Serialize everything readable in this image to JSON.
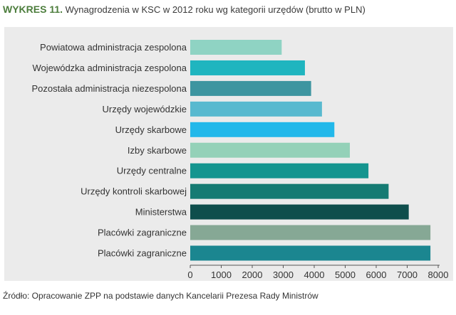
{
  "header": {
    "prefix": "WYKRES 11.",
    "title": "Wynagrodzenia w KSC w 2012 roku wg kategorii urzędów (brutto w PLN)"
  },
  "footer": {
    "source": "Źródło: Opracowanie ZPP na podstawie danych Kancelarii Prezesa Rady Ministrów"
  },
  "chart_data": {
    "type": "bar",
    "orientation": "horizontal",
    "categories": [
      "Powiatowa administracja zespolona",
      "Wojewódzka administracja zespolona",
      "Pozostała administracja niezespolona",
      "Urzędy wojewódzkie",
      "Urzędy skarbowe",
      "Izby skarbowe",
      "Urzędy centralne",
      "Urzędy kontroli skarbowej",
      "Ministerstwa",
      "Placówki zagraniczne",
      "Placówki zagraniczne"
    ],
    "values": [
      2950,
      3700,
      3900,
      4250,
      4650,
      5150,
      5750,
      6400,
      7050,
      7750,
      7750
    ],
    "colors": [
      "#8fd3c3",
      "#1fb5bf",
      "#3d95a0",
      "#58b9cf",
      "#22b8ea",
      "#94d1b8",
      "#14958f",
      "#157b73",
      "#0f4e4c",
      "#86a895",
      "#1b8690"
    ],
    "xlim": [
      0,
      8000
    ],
    "xticks": [
      "0",
      "1000",
      "2000",
      "3000",
      "4000",
      "5000",
      "6000",
      "7000",
      "8000"
    ],
    "grid": false,
    "legend": "none"
  }
}
